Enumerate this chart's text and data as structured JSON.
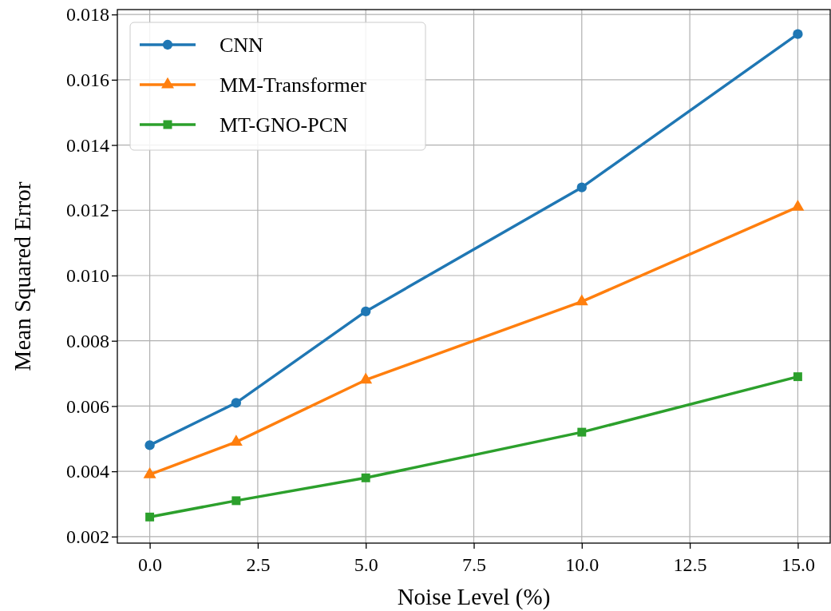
{
  "chart_data": {
    "type": "line",
    "xlabel": "Noise Level (%)",
    "ylabel": "Mean Squared Error",
    "x": [
      0,
      2,
      5,
      10,
      15
    ],
    "series": [
      {
        "name": "CNN",
        "color": "#1f77b4",
        "marker": "circle",
        "values": [
          0.0048,
          0.0061,
          0.0089,
          0.0127,
          0.0174
        ]
      },
      {
        "name": "MM-Transformer",
        "color": "#ff7f0e",
        "marker": "triangle",
        "values": [
          0.0039,
          0.0049,
          0.0068,
          0.0092,
          0.0121
        ]
      },
      {
        "name": "MT-GNO-PCN",
        "color": "#2ca02c",
        "marker": "square",
        "values": [
          0.0026,
          0.0031,
          0.0038,
          0.0052,
          0.0069
        ]
      }
    ],
    "xlim": [
      -0.75,
      15.75
    ],
    "ylim": [
      0.0018,
      0.01815
    ],
    "xticks": [
      {
        "value": 0,
        "label": "0.0"
      },
      {
        "value": 2.5,
        "label": "2.5"
      },
      {
        "value": 5,
        "label": "5.0"
      },
      {
        "value": 7.5,
        "label": "7.5"
      },
      {
        "value": 10,
        "label": "10.0"
      },
      {
        "value": 12.5,
        "label": "12.5"
      },
      {
        "value": 15,
        "label": "15.0"
      }
    ],
    "yticks": [
      {
        "value": 0.002,
        "label": "0.002"
      },
      {
        "value": 0.004,
        "label": "0.004"
      },
      {
        "value": 0.006,
        "label": "0.006"
      },
      {
        "value": 0.008,
        "label": "0.008"
      },
      {
        "value": 0.01,
        "label": "0.010"
      },
      {
        "value": 0.012,
        "label": "0.012"
      },
      {
        "value": 0.014,
        "label": "0.014"
      },
      {
        "value": 0.016,
        "label": "0.016"
      },
      {
        "value": 0.018,
        "label": "0.018"
      }
    ],
    "grid": true,
    "legend": "top left",
    "line_style": "solid"
  }
}
